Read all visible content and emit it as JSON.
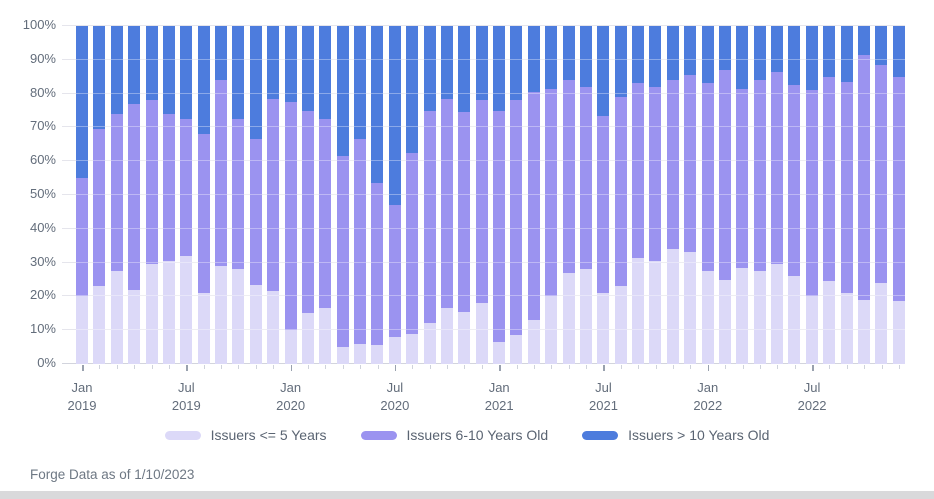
{
  "chart_data": {
    "type": "bar",
    "variant": "stacked-100-percent",
    "title": "",
    "xlabel": "",
    "ylabel": "",
    "ylim": [
      0,
      100
    ],
    "grid": true,
    "legend_position": "bottom",
    "x_tick_every": 6,
    "y_ticks": [
      "0%",
      "10%",
      "20%",
      "30%",
      "40%",
      "50%",
      "60%",
      "70%",
      "80%",
      "90%",
      "100%"
    ],
    "categories": [
      "Jan 2019",
      "Feb 2019",
      "Mar 2019",
      "Apr 2019",
      "May 2019",
      "Jun 2019",
      "Jul 2019",
      "Aug 2019",
      "Sep 2019",
      "Oct 2019",
      "Nov 2019",
      "Dec 2019",
      "Jan 2020",
      "Feb 2020",
      "Mar 2020",
      "Apr 2020",
      "May 2020",
      "Jun 2020",
      "Jul 2020",
      "Aug 2020",
      "Sep 2020",
      "Oct 2020",
      "Nov 2020",
      "Dec 2020",
      "Jan 2021",
      "Feb 2021",
      "Mar 2021",
      "Apr 2021",
      "May 2021",
      "Jun 2021",
      "Jul 2021",
      "Aug 2021",
      "Sep 2021",
      "Oct 2021",
      "Nov 2021",
      "Dec 2021",
      "Jan 2022",
      "Feb 2022",
      "Mar 2022",
      "Apr 2022",
      "May 2022",
      "Jun 2022",
      "Jul 2022",
      "Aug 2022",
      "Sep 2022",
      "Oct 2022",
      "Nov 2022",
      "Dec 2022"
    ],
    "series": [
      {
        "name": "Issuers <= 5 Years",
        "color": "#dcd9f8",
        "values": [
          20,
          23,
          27.5,
          22,
          29.5,
          30.5,
          32,
          21,
          29,
          28,
          23.5,
          21.5,
          10,
          15,
          16.5,
          5,
          6,
          5.5,
          8,
          9,
          12,
          16.5,
          15.5,
          18,
          6.5,
          8.5,
          13,
          20,
          27,
          28,
          21,
          23,
          31.5,
          30.5,
          34,
          33,
          27.5,
          25,
          28.5,
          27.5,
          29.5,
          26,
          20,
          24.5,
          21,
          19,
          24,
          18.5
        ]
      },
      {
        "name": "Issuers 6-10 Years Old",
        "color": "#9b93f0",
        "values": [
          35,
          46.5,
          46.5,
          55,
          48.5,
          43.5,
          40.5,
          47,
          55,
          44.5,
          43,
          57,
          67.5,
          60,
          56,
          56.5,
          60.5,
          48,
          39,
          53.5,
          63,
          62,
          59,
          60,
          68.5,
          69.5,
          67.5,
          61.5,
          57,
          54,
          52.5,
          56,
          51.5,
          51.5,
          50,
          52.5,
          55.5,
          62,
          53,
          56.5,
          57,
          56.5,
          61,
          60.5,
          62.5,
          72.5,
          64.5,
          66.5
        ]
      },
      {
        "name": "Issuers > 10 Years Old",
        "color": "#4d7cdd",
        "values": [
          45,
          30.5,
          26,
          23,
          22,
          26,
          27.5,
          32,
          16,
          27.5,
          33.5,
          21.5,
          22.5,
          25,
          27.5,
          38.5,
          33.5,
          46.5,
          53,
          37.5,
          25,
          21.5,
          25.5,
          22,
          25,
          22,
          19.5,
          18.5,
          16,
          18,
          26.5,
          21,
          17,
          18,
          16,
          14.5,
          17,
          13,
          18.5,
          16,
          13.5,
          17.5,
          19,
          15,
          16.5,
          8.5,
          11.5,
          15
        ]
      }
    ]
  },
  "footer": {
    "text": "Forge Data as of 1/10/2023"
  }
}
